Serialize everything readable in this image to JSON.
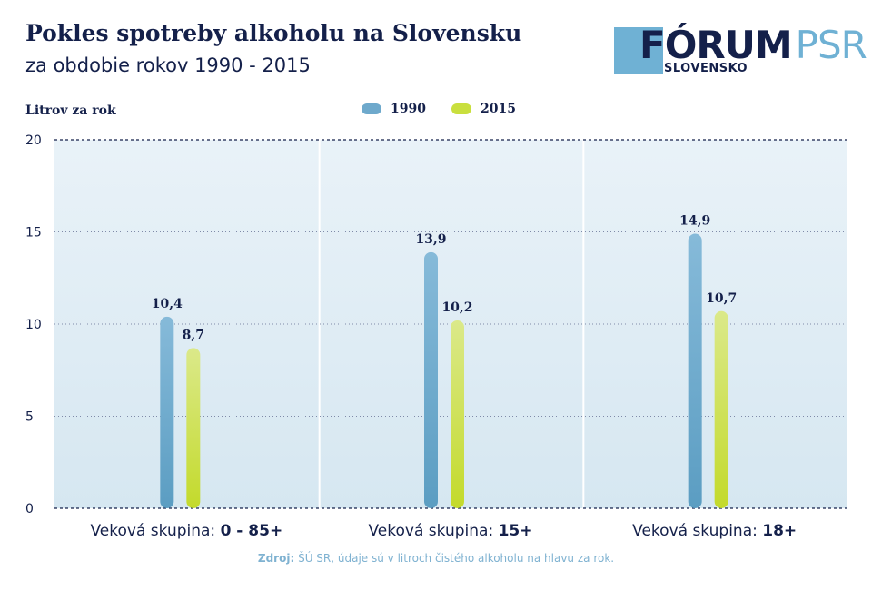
{
  "title": "Pokles spotreby alkoholu na Slovensku",
  "subtitle": "za obdobie rokov 1990 - 2015",
  "logo": {
    "main_dark": "FÓRUM",
    "main_light": "PSR",
    "sub": "SLOVENSKO"
  },
  "source": {
    "label": "Zdroj:",
    "text": " ŠÚ SR, údaje sú v litroch čistého alkoholu na hlavu za rok."
  },
  "chart_data": {
    "type": "bar",
    "ylabel": "Litrov za rok",
    "ylim": [
      0,
      20
    ],
    "yticks": [
      0,
      5,
      10,
      15,
      20
    ],
    "grid": true,
    "legend_position": "top-center",
    "categories": [
      {
        "prefix": "Veková skupina: ",
        "bold": "0 - 85+"
      },
      {
        "prefix": "Veková skupina: ",
        "bold": "15+"
      },
      {
        "prefix": "Veková skupina: ",
        "bold": "18+"
      }
    ],
    "series": [
      {
        "name": "1990",
        "color": "#6ea9cc",
        "values": [
          10.4,
          13.9,
          14.9
        ],
        "labels": [
          "10,4",
          "13,9",
          "14,9"
        ]
      },
      {
        "name": "2015",
        "color": "#c9df3e",
        "values": [
          8.7,
          10.2,
          10.7
        ],
        "labels": [
          "8,7",
          "10,2",
          "10,7"
        ]
      }
    ]
  }
}
